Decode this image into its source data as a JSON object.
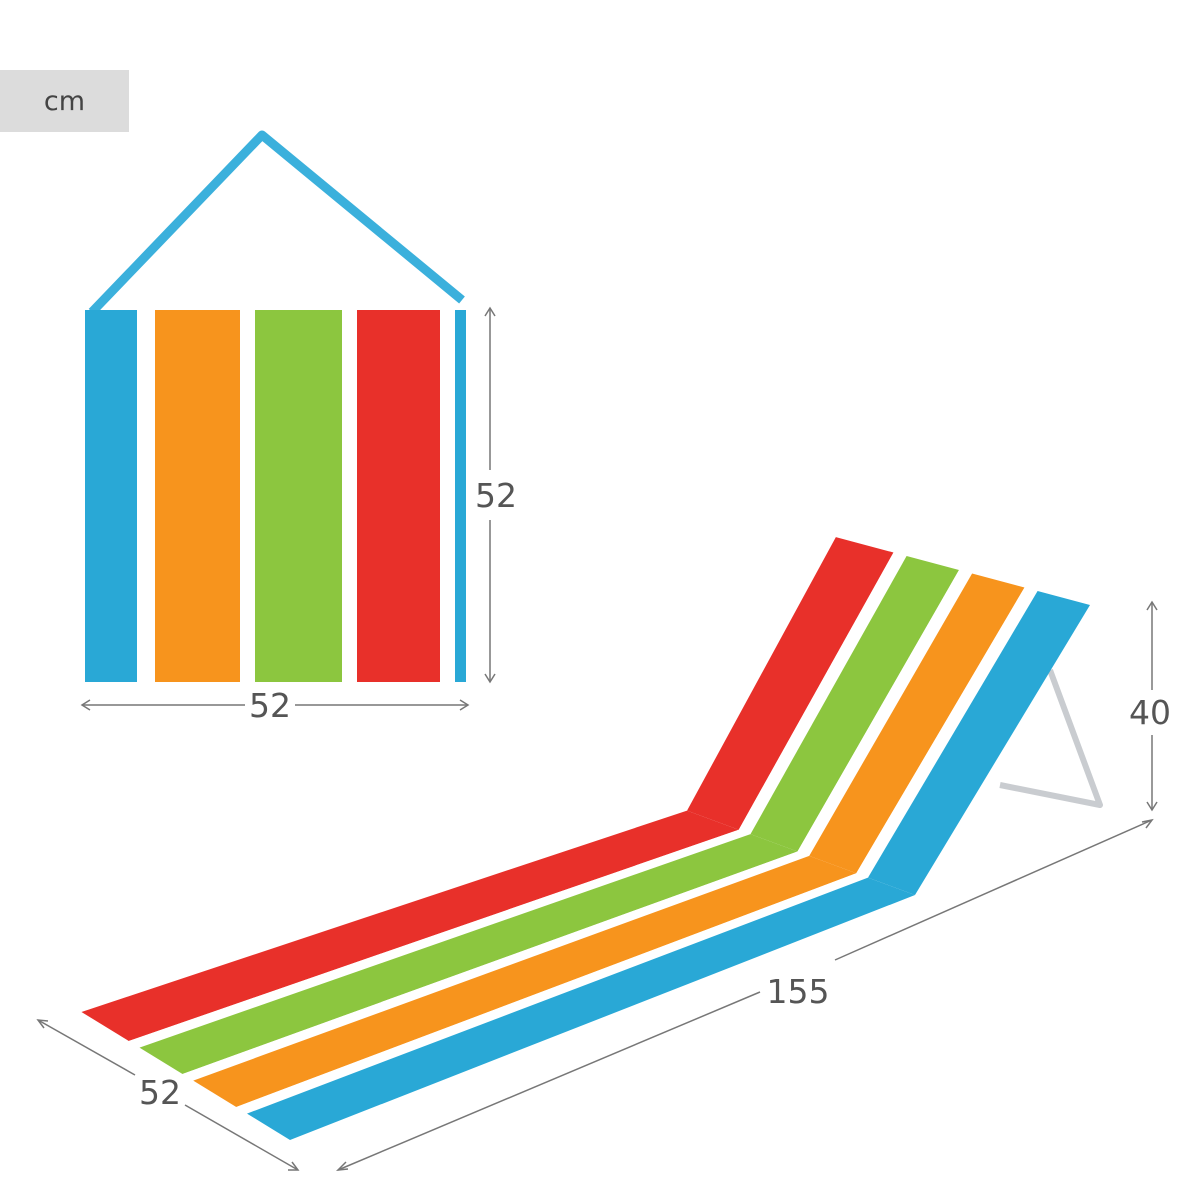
{
  "unit": "cm",
  "bag": {
    "width_label": "52",
    "height_label": "52"
  },
  "mat": {
    "height_label": "40",
    "length_label": "155",
    "width_label": "52"
  },
  "colors": {
    "blue": "#29a8d6",
    "orange": "#f7941d",
    "green": "#8cc63f",
    "red": "#e8302a",
    "white": "#ffffff",
    "dimension": "#777777"
  }
}
